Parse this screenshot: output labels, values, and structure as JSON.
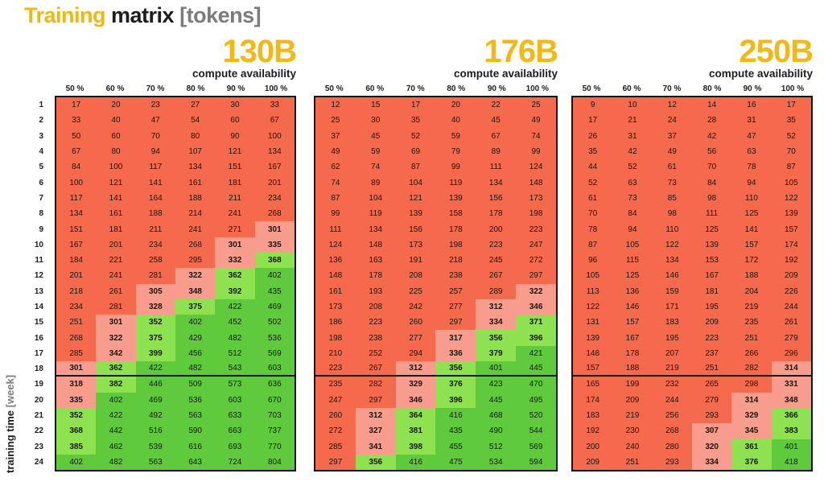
{
  "page_title": {
    "word1": "Training",
    "word2": "matrix",
    "word3": "[tokens]"
  },
  "y_axis": {
    "label": "training time",
    "unit": "[week]"
  },
  "labels": {
    "compute_availability": "compute availability"
  },
  "columns": [
    "50 %",
    "60 %",
    "70 %",
    "80 %",
    "90 %",
    "100 %"
  ],
  "rows": [
    1,
    2,
    3,
    4,
    5,
    6,
    7,
    8,
    9,
    10,
    11,
    12,
    13,
    14,
    15,
    16,
    17,
    18,
    19,
    20,
    21,
    22,
    23,
    24
  ],
  "separator_after_row": 18,
  "style": {
    "accent_yellow": "#f4b713",
    "title_black": "#1d1d1b",
    "title_gray": "#7c7c7b",
    "cell_red": "#f5694d",
    "cell_pink": "#f89c8d",
    "cell_light_green": "#8ee24f",
    "cell_green": "#5fca3c",
    "border_black": "#141414",
    "thresholds": {
      "pink_min": 300,
      "light_green_min": 350,
      "green_min": 400,
      "bold_min": 300,
      "bold_max": 399
    }
  },
  "chart_data": [
    {
      "type": "heatmap",
      "title": "130B",
      "x_label": "compute availability",
      "x": [
        "50 %",
        "60 %",
        "70 %",
        "80 %",
        "90 %",
        "100 %"
      ],
      "y_label": "training time [week]",
      "y": [
        1,
        2,
        3,
        4,
        5,
        6,
        7,
        8,
        9,
        10,
        11,
        12,
        13,
        14,
        15,
        16,
        17,
        18,
        19,
        20,
        21,
        22,
        23,
        24
      ],
      "legend": "cell color: red <300, pink 300-349, light green 350-399, green >=400 tokens (B)",
      "values": [
        [
          17,
          20,
          23,
          27,
          30,
          33
        ],
        [
          33,
          40,
          47,
          54,
          60,
          67
        ],
        [
          50,
          60,
          70,
          80,
          90,
          100
        ],
        [
          67,
          80,
          94,
          107,
          121,
          134
        ],
        [
          84,
          100,
          117,
          134,
          151,
          167
        ],
        [
          100,
          121,
          141,
          161,
          181,
          201
        ],
        [
          117,
          141,
          164,
          188,
          211,
          234
        ],
        [
          134,
          161,
          188,
          214,
          241,
          268
        ],
        [
          151,
          181,
          211,
          241,
          271,
          301
        ],
        [
          167,
          201,
          234,
          268,
          301,
          335
        ],
        [
          184,
          221,
          258,
          295,
          332,
          368
        ],
        [
          201,
          241,
          281,
          322,
          362,
          402
        ],
        [
          218,
          261,
          305,
          348,
          392,
          435
        ],
        [
          234,
          281,
          328,
          375,
          422,
          469
        ],
        [
          251,
          301,
          352,
          402,
          452,
          502
        ],
        [
          268,
          322,
          375,
          429,
          482,
          536
        ],
        [
          285,
          342,
          399,
          456,
          512,
          569
        ],
        [
          301,
          362,
          422,
          482,
          543,
          603
        ],
        [
          318,
          382,
          446,
          509,
          573,
          636
        ],
        [
          335,
          402,
          469,
          536,
          603,
          670
        ],
        [
          352,
          422,
          492,
          563,
          633,
          703
        ],
        [
          368,
          442,
          516,
          590,
          663,
          737
        ],
        [
          385,
          462,
          539,
          616,
          693,
          770
        ],
        [
          402,
          482,
          563,
          643,
          724,
          804
        ]
      ]
    },
    {
      "type": "heatmap",
      "title": "176B",
      "x_label": "compute availability",
      "x": [
        "50 %",
        "60 %",
        "70 %",
        "80 %",
        "90 %",
        "100 %"
      ],
      "y_label": "training time [week]",
      "y": [
        1,
        2,
        3,
        4,
        5,
        6,
        7,
        8,
        9,
        10,
        11,
        12,
        13,
        14,
        15,
        16,
        17,
        18,
        19,
        20,
        21,
        22,
        23,
        24
      ],
      "values": [
        [
          12,
          15,
          17,
          20,
          22,
          25
        ],
        [
          25,
          30,
          35,
          40,
          45,
          49
        ],
        [
          37,
          45,
          52,
          59,
          67,
          74
        ],
        [
          49,
          59,
          69,
          79,
          89,
          99
        ],
        [
          62,
          74,
          87,
          99,
          111,
          124
        ],
        [
          74,
          89,
          104,
          119,
          134,
          148
        ],
        [
          87,
          104,
          121,
          139,
          156,
          173
        ],
        [
          99,
          119,
          139,
          158,
          178,
          198
        ],
        [
          111,
          134,
          156,
          178,
          200,
          223
        ],
        [
          124,
          148,
          173,
          198,
          223,
          247
        ],
        [
          136,
          163,
          191,
          218,
          245,
          272
        ],
        [
          148,
          178,
          208,
          238,
          267,
          297
        ],
        [
          161,
          193,
          225,
          257,
          289,
          322
        ],
        [
          173,
          208,
          242,
          277,
          312,
          346
        ],
        [
          186,
          223,
          260,
          297,
          334,
          371
        ],
        [
          198,
          238,
          277,
          317,
          356,
          396
        ],
        [
          210,
          252,
          294,
          336,
          379,
          421
        ],
        [
          223,
          267,
          312,
          356,
          401,
          445
        ],
        [
          235,
          282,
          329,
          376,
          423,
          470
        ],
        [
          247,
          297,
          346,
          396,
          445,
          495
        ],
        [
          260,
          312,
          364,
          416,
          468,
          520
        ],
        [
          272,
          327,
          381,
          435,
          490,
          544
        ],
        [
          285,
          341,
          398,
          455,
          512,
          569
        ],
        [
          297,
          356,
          416,
          475,
          534,
          594
        ]
      ]
    },
    {
      "type": "heatmap",
      "title": "250B",
      "x_label": "compute availability",
      "x": [
        "50 %",
        "60 %",
        "70 %",
        "80 %",
        "90 %",
        "100 %"
      ],
      "y_label": "training time [week]",
      "y": [
        1,
        2,
        3,
        4,
        5,
        6,
        7,
        8,
        9,
        10,
        11,
        12,
        13,
        14,
        15,
        16,
        17,
        18,
        19,
        20,
        21,
        22,
        23,
        24
      ],
      "values": [
        [
          9,
          10,
          12,
          14,
          16,
          17
        ],
        [
          17,
          21,
          24,
          28,
          31,
          35
        ],
        [
          26,
          31,
          37,
          42,
          47,
          52
        ],
        [
          35,
          42,
          49,
          56,
          63,
          70
        ],
        [
          44,
          52,
          61,
          70,
          78,
          87
        ],
        [
          52,
          63,
          73,
          84,
          94,
          105
        ],
        [
          61,
          73,
          85,
          98,
          110,
          122
        ],
        [
          70,
          84,
          98,
          111,
          125,
          139
        ],
        [
          78,
          94,
          110,
          125,
          141,
          157
        ],
        [
          87,
          105,
          122,
          139,
          157,
          174
        ],
        [
          96,
          115,
          134,
          153,
          172,
          192
        ],
        [
          105,
          125,
          146,
          167,
          188,
          209
        ],
        [
          113,
          136,
          159,
          181,
          204,
          226
        ],
        [
          122,
          146,
          171,
          195,
          219,
          244
        ],
        [
          131,
          157,
          183,
          209,
          235,
          261
        ],
        [
          139,
          167,
          195,
          223,
          251,
          279
        ],
        [
          148,
          178,
          207,
          237,
          266,
          296
        ],
        [
          157,
          188,
          219,
          251,
          282,
          314
        ],
        [
          165,
          199,
          232,
          265,
          298,
          331
        ],
        [
          174,
          209,
          244,
          279,
          314,
          348
        ],
        [
          183,
          219,
          256,
          293,
          329,
          366
        ],
        [
          192,
          230,
          268,
          307,
          345,
          383
        ],
        [
          200,
          240,
          280,
          320,
          361,
          401
        ],
        [
          209,
          251,
          293,
          334,
          376,
          418
        ]
      ]
    }
  ]
}
